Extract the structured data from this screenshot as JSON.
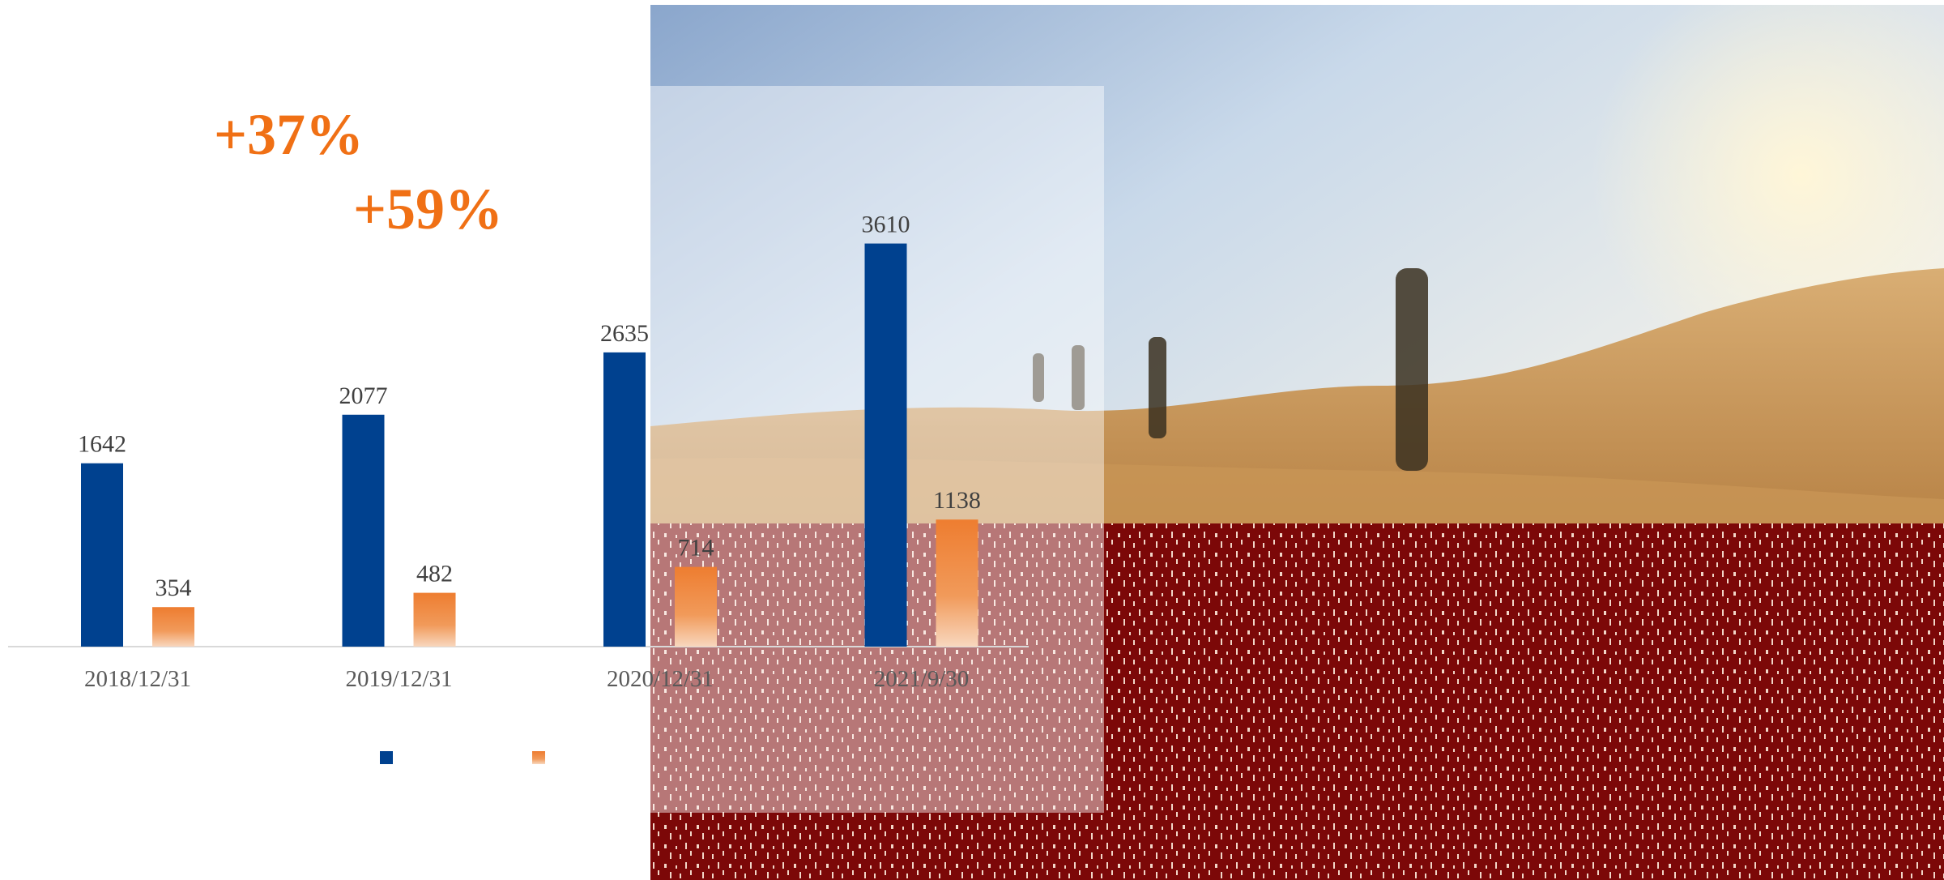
{
  "colors": {
    "series_total": "#00418F",
    "series_second": "#EE7D30",
    "growth_text": "#F07015",
    "label_text": "#404040",
    "tick_text": "#595959",
    "photo_ground": "#7C0808"
  },
  "growth_labels": [
    "+37%",
    "+59%"
  ],
  "chart_data": {
    "type": "bar",
    "title": "",
    "xlabel": "",
    "ylabel": "",
    "categories": [
      "2018/12/31",
      "2019/12/31",
      "2020/12/31",
      "2021/9/30"
    ],
    "series": [
      {
        "color_key": "series_total",
        "values": [
          1642,
          2077,
          2635,
          3610
        ]
      },
      {
        "color_key": "series_second",
        "values": [
          354,
          482,
          714,
          1138
        ]
      }
    ],
    "ylim": [
      0,
      4000
    ],
    "grid": false,
    "data_labels": true,
    "legend": "bottom-center"
  }
}
